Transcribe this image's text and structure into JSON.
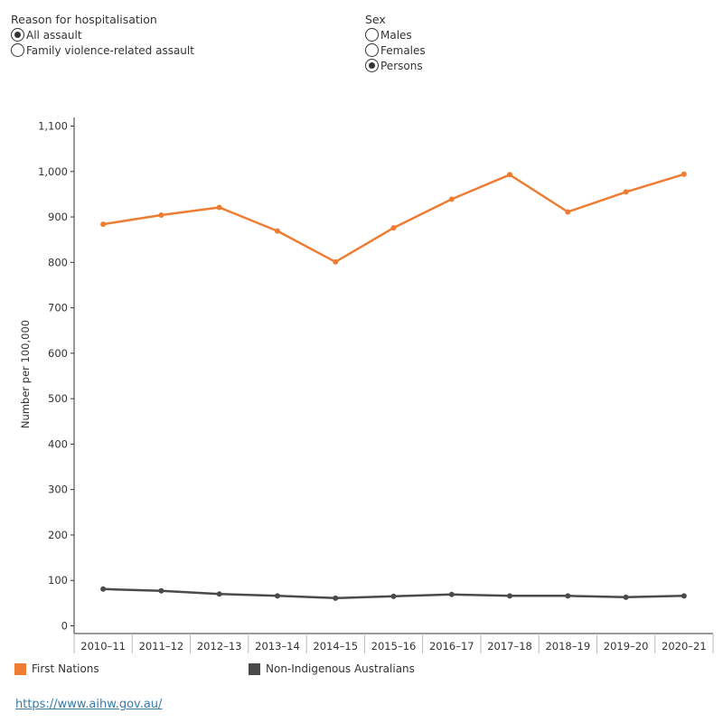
{
  "filters": {
    "reason": {
      "title": "Reason for hospitalisation",
      "options": [
        {
          "label": "All assault",
          "checked": true
        },
        {
          "label": "Family violence-related assault",
          "checked": false
        }
      ]
    },
    "sex": {
      "title": "Sex",
      "options": [
        {
          "label": "Males",
          "checked": false
        },
        {
          "label": "Females",
          "checked": false
        },
        {
          "label": "Persons",
          "checked": true
        }
      ]
    }
  },
  "legend": {
    "first_nations": "First Nations",
    "non_indigenous": "Non-Indigenous Australians"
  },
  "source_url": "https://www.aihw.gov.au/",
  "colors": {
    "first_nations": "#ee7d33",
    "non_indigenous": "#4a4a4a",
    "axis": "#333333"
  },
  "chart_data": {
    "type": "line",
    "title": "",
    "xlabel": "",
    "ylabel": "Number per 100,000",
    "ylim": [
      0,
      1100
    ],
    "yticks": [
      0,
      100,
      200,
      300,
      400,
      500,
      600,
      700,
      800,
      900,
      1000,
      1100
    ],
    "ytick_labels": [
      "0",
      "100",
      "200",
      "300",
      "400",
      "500",
      "600",
      "700",
      "800",
      "900",
      "1,000",
      "1,100"
    ],
    "grid": false,
    "categories": [
      "2010–11",
      "2011–12",
      "2012–13",
      "2013–14",
      "2014–15",
      "2015–16",
      "2016–17",
      "2017–18",
      "2018–19",
      "2019–20",
      "2020–21"
    ],
    "series": [
      {
        "name": "First Nations",
        "values": [
          884,
          904,
          921,
          869,
          801,
          876,
          939,
          993,
          911,
          955,
          994
        ]
      },
      {
        "name": "Non-Indigenous Australians",
        "values": [
          81,
          77,
          70,
          66,
          61,
          65,
          69,
          66,
          66,
          63,
          66
        ]
      }
    ]
  }
}
